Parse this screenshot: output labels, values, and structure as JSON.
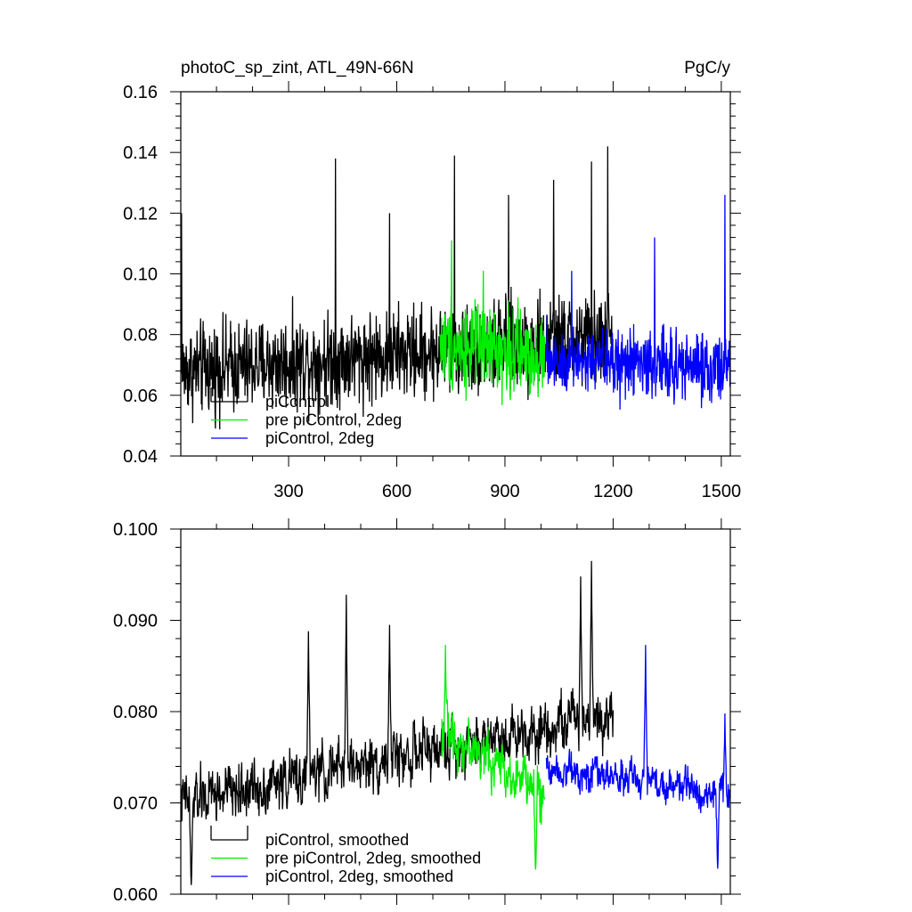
{
  "chart_data": [
    {
      "type": "line",
      "title_left": "photoC_sp_zint, ATL_49N-66N",
      "title_right": "PgC/y",
      "xlabel": "",
      "ylabel": "",
      "xlim": [
        1,
        1525
      ],
      "ylim": [
        0.04,
        0.16
      ],
      "x_ticks": [
        300,
        600,
        900,
        1200,
        1500
      ],
      "x_tick_labels": [
        "300",
        "600",
        "900",
        "1200",
        "1500"
      ],
      "y_ticks": [
        0.04,
        0.06,
        0.08,
        0.1,
        0.12,
        0.14,
        0.16
      ],
      "y_tick_labels": [
        "0.04",
        "0.06",
        "0.08",
        "0.10",
        "0.12",
        "0.14",
        "0.16"
      ],
      "legend_position": "bottom-left",
      "series": [
        {
          "name": "piControl",
          "color": "#000000",
          "x_range": [
            1,
            1200
          ],
          "mean_start": 0.068,
          "mean_end": 0.079,
          "amplitude": 0.013,
          "spikes": [
            [
              3,
              0.12
            ],
            [
              430,
              0.138
            ],
            [
              760,
              0.139
            ],
            [
              910,
              0.126
            ],
            [
              1140,
              0.137
            ],
            [
              1185,
              0.142
            ],
            [
              1035,
              0.131
            ],
            [
              580,
              0.12
            ]
          ]
        },
        {
          "name": "pre piControl, 2deg",
          "color": "#00ee00",
          "x_range": [
            720,
            1010
          ],
          "mean_start": 0.077,
          "mean_end": 0.073,
          "amplitude": 0.012,
          "spikes": [
            [
              752,
              0.111
            ],
            [
              840,
              0.101
            ]
          ]
        },
        {
          "name": "piControl, 2deg",
          "color": "#0000ff",
          "x_range": [
            1015,
            1525
          ],
          "mean_start": 0.072,
          "mean_end": 0.069,
          "amplitude": 0.01,
          "spikes": [
            [
              1315,
              0.112
            ],
            [
              1510,
              0.126
            ],
            [
              1085,
              0.101
            ]
          ]
        }
      ]
    },
    {
      "type": "line",
      "title_left": "",
      "title_right": "",
      "xlabel": "",
      "ylabel": "",
      "xlim": [
        1,
        1525
      ],
      "ylim": [
        0.06,
        0.1
      ],
      "x_ticks": [
        300,
        600,
        900,
        1200,
        1500
      ],
      "y_ticks": [
        0.06,
        0.07,
        0.08,
        0.09,
        0.1
      ],
      "y_tick_labels": [
        "0.060",
        "0.070",
        "0.080",
        "0.090",
        "0.100"
      ],
      "legend_position": "bottom-left",
      "series": [
        {
          "name": "piControl, smoothed",
          "color": "#000000",
          "x_range": [
            1,
            1200
          ],
          "mean_start": 0.07,
          "mean_end": 0.08,
          "amplitude": 0.0045,
          "spikes": [
            [
              460,
              0.0928
            ],
            [
              1140,
              0.0965
            ],
            [
              1110,
              0.0948
            ],
            [
              355,
              0.0888
            ],
            [
              580,
              0.0895
            ],
            [
              30,
              0.061
            ]
          ]
        },
        {
          "name": "pre piControl, 2deg, smoothed",
          "color": "#00ee00",
          "x_range": [
            725,
            1010
          ],
          "mean_start": 0.078,
          "mean_end": 0.071,
          "amplitude": 0.004,
          "spikes": [
            [
              735,
              0.0873
            ],
            [
              985,
              0.0627
            ]
          ]
        },
        {
          "name": "piControl, 2deg, smoothed",
          "color": "#0000ff",
          "x_range": [
            1015,
            1525
          ],
          "mean_start": 0.074,
          "mean_end": 0.071,
          "amplitude": 0.0028,
          "spikes": [
            [
              1290,
              0.0873
            ],
            [
              1490,
              0.0628
            ],
            [
              1510,
              0.0798
            ]
          ]
        }
      ]
    }
  ]
}
